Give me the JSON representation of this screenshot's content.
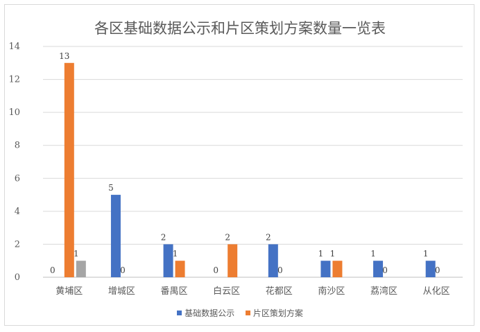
{
  "chart_data": {
    "type": "bar",
    "title": "各区基础数据公示和片区策划方案数量一览表",
    "categories": [
      "黄埔区",
      "增城区",
      "番禺区",
      "白云区",
      "花都区",
      "南沙区",
      "荔湾区",
      "从化区"
    ],
    "series": [
      {
        "name": "基础数据公示",
        "color": "#4472c4",
        "values": [
          0,
          5,
          2,
          0,
          2,
          1,
          1,
          1
        ]
      },
      {
        "name": "片区策划方案",
        "color": "#ed7d31",
        "values": [
          13,
          0,
          1,
          2,
          0,
          1,
          0,
          0
        ]
      },
      {
        "name": "",
        "color": "#a5a5a5",
        "values": [
          1,
          null,
          null,
          null,
          null,
          null,
          null,
          null
        ]
      }
    ],
    "ylim": [
      0,
      14
    ],
    "yticks": [
      0,
      2,
      4,
      6,
      8,
      10,
      12,
      14
    ],
    "grid": true,
    "legend": "bottom"
  }
}
